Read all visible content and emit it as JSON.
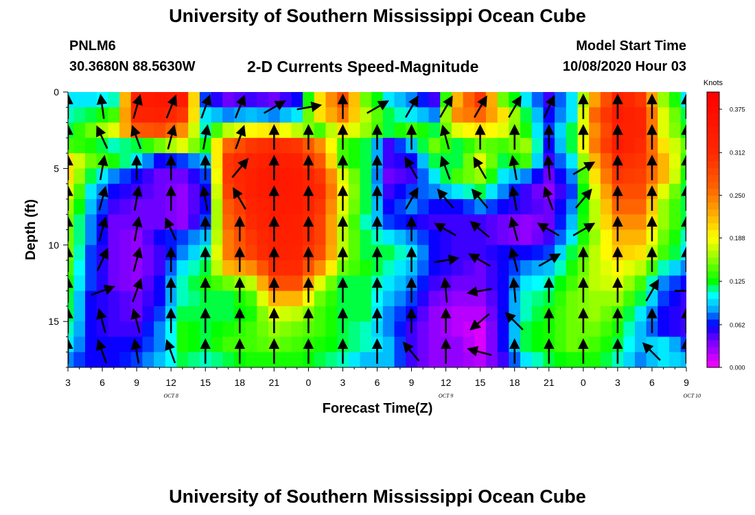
{
  "header": {
    "title": "University of Southern Mississippi Ocean Cube",
    "station": "PNLM6",
    "coords": "30.3680N 88.5630W",
    "subtitle": "2-D Currents Speed-Magnitude",
    "model_start_label": "Model Start Time",
    "model_start_value": "10/08/2020 Hour 03"
  },
  "footer": {
    "title": "University of Southern Mississippi Ocean Cube"
  },
  "chart_data": {
    "type": "heatmap",
    "xlabel": "Forecast Time(Z)",
    "ylabel": "Depth (ft)",
    "x_tick_labels": [
      "3",
      "6",
      "9",
      "12",
      "15",
      "18",
      "21",
      "0",
      "3",
      "6",
      "9",
      "12",
      "15",
      "18",
      "21",
      "0",
      "3",
      "6",
      "9"
    ],
    "date_labels": [
      "OCT 8",
      "OCT 9",
      "OCT 10"
    ],
    "y_tick_labels": [
      "0",
      "5",
      "10",
      "15"
    ],
    "yrange": [
      0,
      18
    ],
    "hours_start": 3,
    "hours_step": 1,
    "colorbar": {
      "unit": "Knots",
      "min": 0.0,
      "max": 0.4,
      "ticks": [
        "0.000",
        "0.062",
        "0.125",
        "0.188",
        "0.250",
        "0.312",
        "0.375"
      ]
    },
    "depth_levels_ft": [
      0.5,
      1.5,
      2.5,
      3.5,
      4.5,
      5.5,
      6.5,
      7.5,
      8.5,
      9.5,
      10.5,
      11.5,
      12.5,
      13.5,
      14.5,
      15.5,
      16.5,
      17.5
    ],
    "speed_anchor_hours": [
      3,
      5,
      7,
      9,
      11,
      13,
      15,
      17,
      19,
      21,
      23,
      25,
      27,
      29,
      31,
      33,
      35,
      37,
      39,
      41,
      43,
      45,
      47,
      49,
      51,
      53,
      55,
      57
    ],
    "speed_grid_knots": [
      [
        0.1,
        0.1,
        0.11,
        0.33,
        0.35,
        0.34,
        0.07,
        0.04,
        0.05,
        0.04,
        0.06,
        0.2,
        0.28,
        0.15,
        0.1,
        0.08,
        0.05,
        0.22,
        0.3,
        0.15,
        0.1,
        0.05,
        0.1,
        0.23,
        0.33,
        0.3,
        0.16,
        0.1
      ],
      [
        0.11,
        0.12,
        0.14,
        0.32,
        0.33,
        0.3,
        0.1,
        0.08,
        0.09,
        0.08,
        0.1,
        0.2,
        0.25,
        0.17,
        0.12,
        0.1,
        0.08,
        0.24,
        0.26,
        0.2,
        0.12,
        0.06,
        0.1,
        0.26,
        0.34,
        0.32,
        0.18,
        0.12
      ],
      [
        0.12,
        0.15,
        0.18,
        0.27,
        0.28,
        0.24,
        0.11,
        0.17,
        0.19,
        0.2,
        0.17,
        0.14,
        0.2,
        0.16,
        0.12,
        0.14,
        0.12,
        0.18,
        0.2,
        0.18,
        0.13,
        0.07,
        0.12,
        0.24,
        0.33,
        0.32,
        0.18,
        0.13
      ],
      [
        0.14,
        0.13,
        0.11,
        0.12,
        0.15,
        0.18,
        0.13,
        0.26,
        0.3,
        0.31,
        0.3,
        0.24,
        0.14,
        0.12,
        0.05,
        0.09,
        0.15,
        0.12,
        0.15,
        0.14,
        0.16,
        0.06,
        0.12,
        0.25,
        0.34,
        0.31,
        0.2,
        0.15
      ],
      [
        0.2,
        0.15,
        0.13,
        0.1,
        0.06,
        0.07,
        0.09,
        0.3,
        0.32,
        0.34,
        0.33,
        0.27,
        0.14,
        0.12,
        0.05,
        0.06,
        0.12,
        0.12,
        0.18,
        0.12,
        0.14,
        0.05,
        0.1,
        0.22,
        0.31,
        0.3,
        0.22,
        0.14
      ],
      [
        0.2,
        0.12,
        0.08,
        0.06,
        0.04,
        0.04,
        0.07,
        0.3,
        0.33,
        0.35,
        0.34,
        0.3,
        0.18,
        0.12,
        0.04,
        0.05,
        0.1,
        0.14,
        0.16,
        0.1,
        0.08,
        0.04,
        0.08,
        0.2,
        0.3,
        0.29,
        0.22,
        0.13
      ],
      [
        0.18,
        0.1,
        0.06,
        0.05,
        0.04,
        0.03,
        0.06,
        0.29,
        0.33,
        0.35,
        0.34,
        0.31,
        0.19,
        0.12,
        0.05,
        0.07,
        0.08,
        0.1,
        0.12,
        0.08,
        0.05,
        0.03,
        0.07,
        0.18,
        0.28,
        0.28,
        0.18,
        0.12
      ],
      [
        0.16,
        0.09,
        0.05,
        0.04,
        0.04,
        0.03,
        0.06,
        0.27,
        0.32,
        0.34,
        0.34,
        0.3,
        0.18,
        0.12,
        0.06,
        0.08,
        0.06,
        0.06,
        0.08,
        0.06,
        0.05,
        0.04,
        0.08,
        0.17,
        0.26,
        0.26,
        0.16,
        0.12
      ],
      [
        0.15,
        0.08,
        0.04,
        0.04,
        0.04,
        0.03,
        0.07,
        0.26,
        0.31,
        0.34,
        0.33,
        0.29,
        0.17,
        0.11,
        0.07,
        0.06,
        0.05,
        0.05,
        0.05,
        0.04,
        0.03,
        0.04,
        0.09,
        0.17,
        0.24,
        0.24,
        0.16,
        0.12
      ],
      [
        0.15,
        0.08,
        0.04,
        0.03,
        0.06,
        0.07,
        0.09,
        0.25,
        0.3,
        0.33,
        0.33,
        0.29,
        0.17,
        0.12,
        0.1,
        0.08,
        0.06,
        0.05,
        0.05,
        0.04,
        0.03,
        0.05,
        0.1,
        0.16,
        0.22,
        0.22,
        0.15,
        0.11
      ],
      [
        0.15,
        0.07,
        0.04,
        0.03,
        0.05,
        0.08,
        0.11,
        0.25,
        0.29,
        0.33,
        0.32,
        0.28,
        0.17,
        0.12,
        0.12,
        0.1,
        0.06,
        0.05,
        0.05,
        0.06,
        0.06,
        0.07,
        0.12,
        0.17,
        0.21,
        0.2,
        0.14,
        0.1
      ],
      [
        0.14,
        0.07,
        0.04,
        0.03,
        0.05,
        0.1,
        0.12,
        0.22,
        0.24,
        0.31,
        0.31,
        0.24,
        0.15,
        0.13,
        0.11,
        0.09,
        0.06,
        0.05,
        0.04,
        0.06,
        0.08,
        0.09,
        0.13,
        0.17,
        0.19,
        0.17,
        0.11,
        0.08
      ],
      [
        0.13,
        0.07,
        0.04,
        0.03,
        0.06,
        0.11,
        0.13,
        0.15,
        0.17,
        0.28,
        0.28,
        0.18,
        0.12,
        0.12,
        0.1,
        0.08,
        0.05,
        0.04,
        0.04,
        0.06,
        0.1,
        0.11,
        0.14,
        0.17,
        0.18,
        0.14,
        0.08,
        0.06
      ],
      [
        0.12,
        0.06,
        0.05,
        0.04,
        0.06,
        0.11,
        0.12,
        0.12,
        0.14,
        0.22,
        0.22,
        0.15,
        0.12,
        0.12,
        0.09,
        0.07,
        0.04,
        0.03,
        0.03,
        0.06,
        0.11,
        0.12,
        0.15,
        0.16,
        0.16,
        0.12,
        0.07,
        0.05
      ],
      [
        0.12,
        0.06,
        0.05,
        0.04,
        0.07,
        0.12,
        0.12,
        0.12,
        0.13,
        0.18,
        0.17,
        0.14,
        0.12,
        0.12,
        0.08,
        0.06,
        0.03,
        0.02,
        0.02,
        0.06,
        0.11,
        0.13,
        0.15,
        0.16,
        0.14,
        0.1,
        0.06,
        0.05
      ],
      [
        0.11,
        0.06,
        0.05,
        0.05,
        0.08,
        0.13,
        0.12,
        0.13,
        0.14,
        0.16,
        0.15,
        0.14,
        0.12,
        0.11,
        0.08,
        0.05,
        0.03,
        0.02,
        0.01,
        0.06,
        0.12,
        0.13,
        0.15,
        0.15,
        0.13,
        0.09,
        0.06,
        0.05
      ],
      [
        0.1,
        0.06,
        0.06,
        0.06,
        0.08,
        0.13,
        0.12,
        0.14,
        0.14,
        0.15,
        0.14,
        0.13,
        0.12,
        0.11,
        0.09,
        0.05,
        0.03,
        0.03,
        0.01,
        0.06,
        0.12,
        0.13,
        0.15,
        0.14,
        0.12,
        0.09,
        0.1,
        0.07
      ],
      [
        0.08,
        0.06,
        0.06,
        0.07,
        0.09,
        0.12,
        0.11,
        0.12,
        0.13,
        0.13,
        0.13,
        0.12,
        0.11,
        0.09,
        0.09,
        0.05,
        0.03,
        0.03,
        0.02,
        0.05,
        0.1,
        0.12,
        0.13,
        0.13,
        0.11,
        0.08,
        0.1,
        0.09
      ]
    ],
    "vector_depths_ft": [
      1,
      3,
      5,
      7,
      9,
      11,
      13,
      15,
      17
    ],
    "vector_hours": [
      3,
      6,
      9,
      12,
      15,
      18,
      21,
      24,
      27,
      30,
      33,
      36,
      39,
      42,
      45,
      48,
      51,
      54,
      57
    ],
    "vector_angles_deg": [
      [
        0,
        -8,
        16,
        22,
        20,
        22,
        60,
        80,
        0,
        60,
        30,
        30,
        30,
        30,
        25,
        0,
        0,
        0,
        0
      ],
      [
        0,
        -25,
        -20,
        15,
        10,
        20,
        0,
        0,
        0,
        0,
        0,
        -15,
        0,
        0,
        0,
        0,
        0,
        0,
        0
      ],
      [
        0,
        10,
        0,
        0,
        0,
        40,
        0,
        0,
        0,
        0,
        -30,
        -20,
        -30,
        -10,
        -5,
        60,
        0,
        0,
        0
      ],
      [
        0,
        15,
        10,
        0,
        -10,
        -30,
        0,
        0,
        0,
        0,
        30,
        -40,
        -40,
        -10,
        -20,
        40,
        0,
        0,
        0
      ],
      [
        0,
        15,
        10,
        -25,
        0,
        0,
        0,
        0,
        0,
        0,
        0,
        -60,
        -50,
        -15,
        -60,
        60,
        0,
        0,
        0
      ],
      [
        0,
        25,
        15,
        0,
        0,
        0,
        0,
        0,
        0,
        0,
        0,
        80,
        -60,
        -15,
        60,
        0,
        0,
        0,
        0
      ],
      [
        0,
        70,
        20,
        0,
        0,
        0,
        0,
        0,
        0,
        0,
        0,
        -5,
        -100,
        -5,
        0,
        0,
        0,
        30,
        90
      ],
      [
        0,
        -15,
        -15,
        0,
        0,
        0,
        0,
        0,
        0,
        0,
        0,
        0,
        -130,
        -45,
        0,
        0,
        0,
        0,
        0
      ],
      [
        0,
        -20,
        -10,
        -20,
        0,
        0,
        0,
        0,
        0,
        0,
        -40,
        0,
        -75,
        0,
        0,
        0,
        0,
        -45,
        0
      ]
    ]
  }
}
